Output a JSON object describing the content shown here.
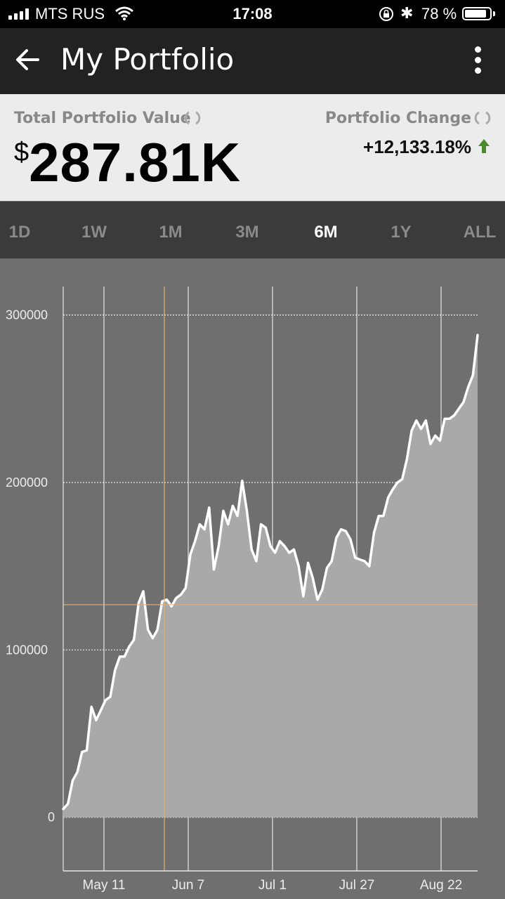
{
  "status_bar": {
    "carrier": "MTS RUS",
    "time": "17:08",
    "battery_text": "78 %",
    "battery_level": 0.78,
    "icons": [
      "signal-icon",
      "wifi-icon",
      "rotation-lock-icon",
      "bluetooth-icon",
      "battery-icon"
    ]
  },
  "app_bar": {
    "title": "My Portfolio",
    "back_icon": "back-arrow-icon",
    "menu_icon": "more-vertical-icon"
  },
  "summary": {
    "total_label": "Total Portfolio Value",
    "currency_symbol": "$",
    "total_value": "287.81K",
    "change_label": "Portfolio Change",
    "change_value": "+12,133.18%",
    "change_direction_icon": "arrow-up-icon",
    "change_color": "#4a8a2a",
    "refresh_icon": "refresh-icon"
  },
  "ranges": {
    "items": [
      "1D",
      "1W",
      "1M",
      "3M",
      "6M",
      "1Y",
      "ALL"
    ],
    "selected": "6M"
  },
  "chart_data": {
    "type": "area",
    "series": [
      {
        "values": [
          5000,
          8000,
          22000,
          27000,
          39000,
          40000,
          66000,
          58000,
          64000,
          70000,
          72000,
          88000,
          96000,
          96000,
          102000,
          106000,
          128000,
          135000,
          112000,
          107000,
          112000,
          129000,
          130000,
          126000,
          131000,
          133000,
          137000,
          157000,
          165000,
          175000,
          172000,
          185000,
          148000,
          162000,
          183000,
          175000,
          186000,
          180000,
          201000,
          183000,
          160000,
          153000,
          175000,
          173000,
          162000,
          158000,
          165000,
          162000,
          158000,
          160000,
          150000,
          132000,
          152000,
          143000,
          130000,
          136000,
          149000,
          153000,
          167000,
          172000,
          171000,
          166000,
          155000,
          154000,
          153000,
          150000,
          170000,
          180000,
          180000,
          191000,
          196000,
          200000,
          202000,
          214000,
          231000,
          237000,
          232000,
          237000,
          223000,
          228000,
          225000,
          238000,
          238000,
          240000,
          244000,
          248000,
          257000,
          264000,
          288000
        ]
      }
    ],
    "x_tick_labels": [
      "May 11",
      "Jun 7",
      "Jul 1",
      "Jul 27",
      "Aug 22"
    ],
    "y_tick_labels": [
      "300000",
      "200000",
      "100000",
      "0"
    ],
    "y_ticks": [
      300000,
      200000,
      100000,
      0
    ],
    "ylim": [
      -32000,
      317000
    ],
    "grid": true,
    "crosshair_value": 127000,
    "line_color": "#ffffff",
    "fill_color": "#a9a9a9",
    "crosshair_color": "#e0b07a"
  }
}
